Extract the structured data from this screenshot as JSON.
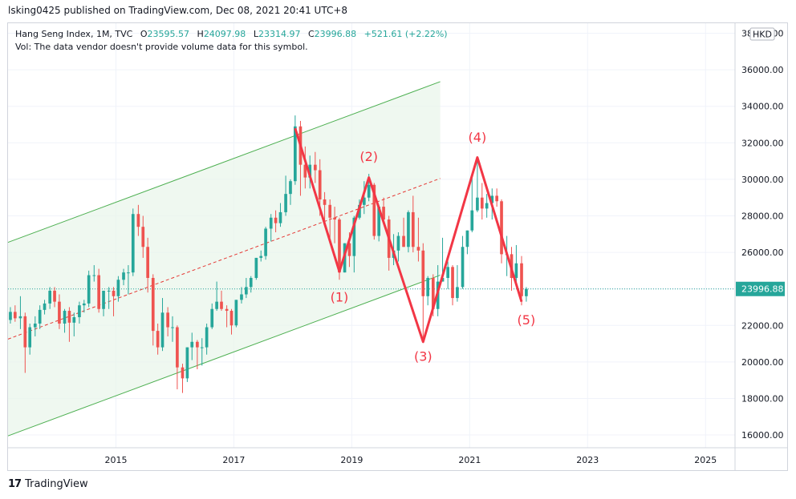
{
  "header": {
    "published": "lsking0425 published on TradingView.com, Dec 08, 2021 20:41 UTC+8"
  },
  "legend": {
    "symbol": "Hang Seng Index, 1M, TVC",
    "open_label": "O",
    "open": "23595.57",
    "high_label": "H",
    "high": "24097.98",
    "low_label": "L",
    "low": "23314.97",
    "close_label": "C",
    "close": "23996.88",
    "change": "+521.61 (+2.22%)",
    "volume_note": "Vol: The data vendor doesn't provide volume data for this symbol."
  },
  "footer": {
    "brand": "TradingView",
    "brand_mark": "17"
  },
  "colors": {
    "up": "#26a69a",
    "down": "#ef5350",
    "channel": "#4caf50",
    "channel_fill": "#e8f5e9",
    "zigzag": "#f23645",
    "price_label_bg": "#26a69a"
  },
  "chart_data": {
    "type": "candlestick",
    "title": "Hang Seng Index, 1M, TVC",
    "currency": "HKD",
    "last_price": 23996.88,
    "last_price_label": "23996.88",
    "y_ticks": [
      16000,
      18000,
      20000,
      22000,
      24000,
      26000,
      28000,
      30000,
      32000,
      34000,
      36000,
      38000
    ],
    "y_tick_labels": [
      "16000.00",
      "18000.00",
      "20000.00",
      "22000.00",
      "",
      "26000.00",
      "28000.00",
      "30000.00",
      "32000.00",
      "34000.00",
      "36000.00",
      "38000.00"
    ],
    "x_ticks": [
      "2015",
      "2017",
      "2019",
      "2021",
      "2023",
      "2025"
    ],
    "x_tick_values": [
      2015.0,
      2017.0,
      2019.0,
      2021.0,
      2023.0,
      2025.0
    ],
    "xlim": [
      2013.17,
      2025.5
    ],
    "ylim": [
      15300,
      38550
    ],
    "candles": [
      [
        2013.21,
        22300,
        23000,
        22100,
        22740
      ],
      [
        2013.29,
        22740,
        23100,
        22200,
        22390
      ],
      [
        2013.38,
        22390,
        23600,
        21800,
        22500
      ],
      [
        2013.46,
        22500,
        22700,
        19400,
        20800
      ],
      [
        2013.54,
        20800,
        22100,
        20400,
        21900
      ],
      [
        2013.63,
        21900,
        22500,
        21400,
        22100
      ],
      [
        2013.71,
        22100,
        23100,
        21800,
        22850
      ],
      [
        2013.79,
        22850,
        23400,
        22600,
        23200
      ],
      [
        2013.88,
        23200,
        24100,
        22900,
        23900
      ],
      [
        2013.96,
        23900,
        24100,
        23000,
        23300
      ],
      [
        2014.04,
        23300,
        23700,
        21800,
        22100
      ],
      [
        2014.13,
        22100,
        22900,
        21600,
        22800
      ],
      [
        2014.21,
        22800,
        23000,
        21100,
        22150
      ],
      [
        2014.29,
        22150,
        22700,
        21400,
        22450
      ],
      [
        2014.38,
        22450,
        23300,
        22100,
        23100
      ],
      [
        2014.46,
        23100,
        23400,
        22700,
        23200
      ],
      [
        2014.54,
        23200,
        25000,
        23000,
        24750
      ],
      [
        2014.63,
        24750,
        25300,
        24400,
        24750
      ],
      [
        2014.71,
        24750,
        25100,
        22700,
        22900
      ],
      [
        2014.79,
        22900,
        23800,
        22500,
        23900
      ],
      [
        2014.88,
        23900,
        24100,
        22900,
        23900
      ],
      [
        2014.96,
        23900,
        24100,
        22500,
        23600
      ],
      [
        2015.04,
        23600,
        24700,
        23300,
        24500
      ],
      [
        2015.13,
        24500,
        25100,
        24200,
        24900
      ],
      [
        2015.21,
        24900,
        25300,
        23700,
        24900
      ],
      [
        2015.29,
        24900,
        28400,
        24700,
        28100
      ],
      [
        2015.38,
        28100,
        28600,
        26900,
        27400
      ],
      [
        2015.46,
        27400,
        28000,
        25700,
        26300
      ],
      [
        2015.54,
        26300,
        26800,
        23800,
        24600
      ],
      [
        2015.63,
        24600,
        24800,
        20900,
        21700
      ],
      [
        2015.71,
        21700,
        22100,
        20400,
        20800
      ],
      [
        2015.79,
        20800,
        23500,
        20600,
        22700
      ],
      [
        2015.88,
        22700,
        23000,
        21400,
        21900
      ],
      [
        2015.96,
        21900,
        22500,
        21100,
        21900
      ],
      [
        2016.04,
        21900,
        22000,
        18500,
        19700
      ],
      [
        2016.13,
        19700,
        19900,
        18300,
        19100
      ],
      [
        2016.21,
        19100,
        20800,
        18900,
        20800
      ],
      [
        2016.29,
        20800,
        21600,
        20100,
        21100
      ],
      [
        2016.38,
        21100,
        21200,
        19600,
        20800
      ],
      [
        2016.46,
        20800,
        21300,
        19800,
        20800
      ],
      [
        2016.54,
        20800,
        22100,
        20400,
        21900
      ],
      [
        2016.63,
        21900,
        23200,
        21800,
        22900
      ],
      [
        2016.71,
        22900,
        24400,
        22800,
        23300
      ],
      [
        2016.79,
        23300,
        23900,
        22800,
        22900
      ],
      [
        2016.88,
        22900,
        23100,
        21900,
        22800
      ],
      [
        2016.96,
        22800,
        22900,
        21500,
        22000
      ],
      [
        2017.04,
        22000,
        23400,
        21900,
        23400
      ],
      [
        2017.13,
        23400,
        24100,
        23200,
        23700
      ],
      [
        2017.21,
        23700,
        24600,
        23500,
        24100
      ],
      [
        2017.29,
        24100,
        24700,
        23800,
        24600
      ],
      [
        2017.38,
        24600,
        25700,
        24500,
        25700
      ],
      [
        2017.46,
        25700,
        26100,
        25500,
        25800
      ],
      [
        2017.54,
        25800,
        27400,
        25600,
        27300
      ],
      [
        2017.63,
        27300,
        28100,
        26600,
        27900
      ],
      [
        2017.71,
        27900,
        28300,
        27100,
        27600
      ],
      [
        2017.79,
        27600,
        28700,
        27400,
        28200
      ],
      [
        2017.88,
        28200,
        30200,
        28000,
        29200
      ],
      [
        2017.96,
        29200,
        30000,
        28600,
        29900
      ],
      [
        2018.04,
        29900,
        33500,
        29700,
        32900
      ],
      [
        2018.13,
        32900,
        33200,
        29100,
        30800
      ],
      [
        2018.21,
        30800,
        31800,
        29500,
        30100
      ],
      [
        2018.29,
        30100,
        31300,
        29500,
        30800
      ],
      [
        2018.38,
        30800,
        31500,
        29800,
        30500
      ],
      [
        2018.46,
        30500,
        31100,
        28000,
        28900
      ],
      [
        2018.54,
        28900,
        29300,
        27700,
        28600
      ],
      [
        2018.63,
        28600,
        28900,
        26800,
        27900
      ],
      [
        2018.71,
        27900,
        28500,
        26500,
        27800
      ],
      [
        2018.79,
        27800,
        27900,
        24500,
        24900
      ],
      [
        2018.88,
        24900,
        26500,
        24900,
        26500
      ],
      [
        2018.96,
        26500,
        27100,
        25200,
        25800
      ],
      [
        2019.04,
        25800,
        28000,
        24900,
        27900
      ],
      [
        2019.13,
        27900,
        28900,
        27800,
        28600
      ],
      [
        2019.21,
        28600,
        29900,
        28100,
        29000
      ],
      [
        2019.29,
        29000,
        30300,
        28800,
        29700
      ],
      [
        2019.38,
        29700,
        29800,
        26700,
        26900
      ],
      [
        2019.46,
        26900,
        28600,
        26600,
        28500
      ],
      [
        2019.54,
        28500,
        29000,
        27600,
        27800
      ],
      [
        2019.63,
        27800,
        28000,
        25000,
        25700
      ],
      [
        2019.71,
        25700,
        27000,
        25300,
        26100
      ],
      [
        2019.79,
        26100,
        27100,
        25500,
        26900
      ],
      [
        2019.88,
        26900,
        27900,
        26300,
        26300
      ],
      [
        2019.96,
        26300,
        28300,
        26000,
        28200
      ],
      [
        2020.04,
        28200,
        29100,
        26000,
        26300
      ],
      [
        2020.13,
        26300,
        27900,
        25500,
        26100
      ],
      [
        2020.21,
        26100,
        26500,
        21100,
        23600
      ],
      [
        2020.29,
        23600,
        24700,
        23100,
        24600
      ],
      [
        2020.38,
        24600,
        24800,
        22500,
        22900
      ],
      [
        2020.46,
        22900,
        25300,
        22500,
        24400
      ],
      [
        2020.54,
        24400,
        26800,
        24400,
        24600
      ],
      [
        2020.63,
        24600,
        25500,
        24000,
        25200
      ],
      [
        2020.71,
        25200,
        25300,
        23100,
        23500
      ],
      [
        2020.79,
        23500,
        25300,
        23300,
        24100
      ],
      [
        2020.88,
        24100,
        26900,
        24000,
        26300
      ],
      [
        2020.96,
        26300,
        27200,
        25900,
        27200
      ],
      [
        2021.04,
        27200,
        30200,
        27100,
        28300
      ],
      [
        2021.13,
        28300,
        31200,
        28200,
        29000
      ],
      [
        2021.21,
        29000,
        29800,
        27800,
        28400
      ],
      [
        2021.29,
        28400,
        29200,
        27900,
        28700
      ],
      [
        2021.38,
        28700,
        29500,
        27800,
        29100
      ],
      [
        2021.46,
        29100,
        29500,
        28500,
        28800
      ],
      [
        2021.54,
        28800,
        28900,
        25400,
        25900
      ],
      [
        2021.63,
        25900,
        26900,
        24700,
        25900
      ],
      [
        2021.71,
        25900,
        26300,
        23900,
        24600
      ],
      [
        2021.79,
        24600,
        26400,
        24300,
        25400
      ],
      [
        2021.88,
        25400,
        25800,
        23100,
        23600
      ],
      [
        2021.96,
        23600,
        24100,
        23300,
        24000
      ]
    ],
    "channel": {
      "upper": [
        [
          2013.17,
          26550
        ],
        [
          2020.5,
          35350
        ]
      ],
      "middle": [
        [
          2013.17,
          21250
        ],
        [
          2020.5,
          30050
        ]
      ],
      "lower": [
        [
          2013.17,
          15950
        ],
        [
          2020.5,
          24750
        ]
      ]
    },
    "zigzag": {
      "points": [
        [
          2018.04,
          32800
        ],
        [
          2018.79,
          24950
        ],
        [
          2019.29,
          30100
        ],
        [
          2020.21,
          21100
        ],
        [
          2021.13,
          31200
        ],
        [
          2021.88,
          23300
        ]
      ],
      "labels": [
        {
          "text": "(1)",
          "x": 2018.79,
          "y": 23300
        },
        {
          "text": "(2)",
          "x": 2019.29,
          "y": 31000
        },
        {
          "text": "(3)",
          "x": 2020.21,
          "y": 20050
        },
        {
          "text": "(4)",
          "x": 2021.13,
          "y": 32050
        },
        {
          "text": "(5)",
          "x": 2021.96,
          "y": 22050
        }
      ]
    }
  }
}
